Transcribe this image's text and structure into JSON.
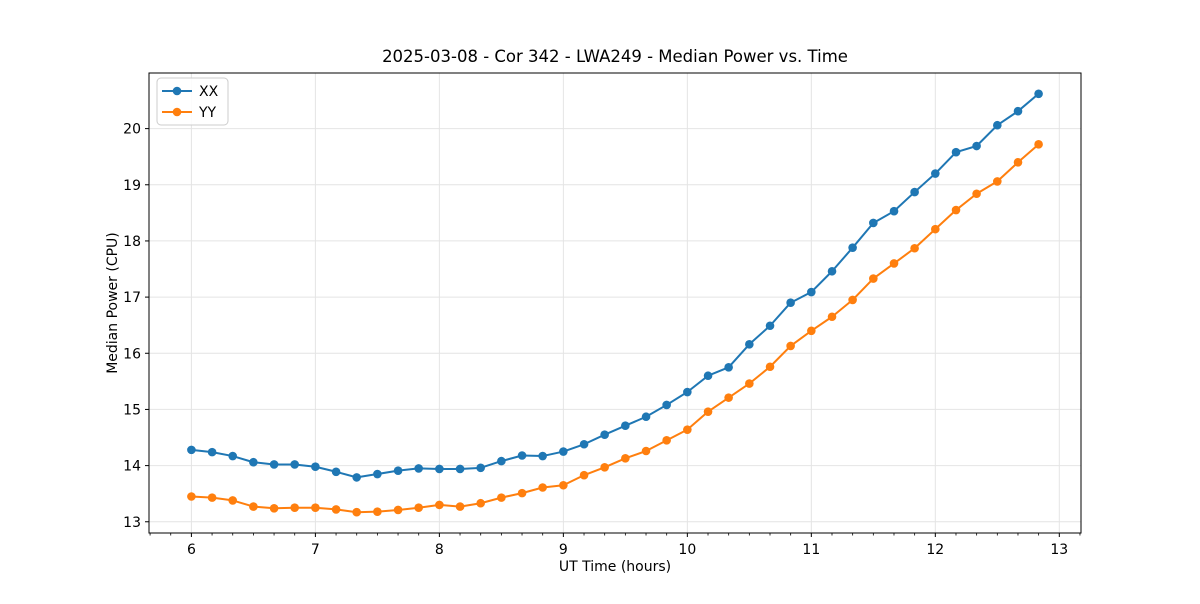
{
  "chart_data": {
    "type": "line",
    "title": "2025-03-08 - Cor 342 - LWA249 - Median Power vs. Time",
    "xlabel": "UT Time (hours)",
    "ylabel": "Median Power (CPU)",
    "xlim": [
      5.658,
      13.175
    ],
    "ylim": [
      12.8,
      20.99
    ],
    "x_major_ticks": [
      6,
      7,
      8,
      9,
      10,
      11,
      12,
      13
    ],
    "y_major_ticks": [
      13,
      14,
      15,
      16,
      17,
      18,
      19,
      20
    ],
    "x_minor_step_hours": 0.1667,
    "grid": true,
    "legend_position": "upper left",
    "x": [
      6.0,
      6.167,
      6.333,
      6.5,
      6.667,
      6.833,
      7.0,
      7.167,
      7.333,
      7.5,
      7.667,
      7.833,
      8.0,
      8.167,
      8.333,
      8.5,
      8.667,
      8.833,
      9.0,
      9.167,
      9.333,
      9.5,
      9.667,
      9.833,
      10.0,
      10.167,
      10.333,
      10.5,
      10.667,
      10.833,
      11.0,
      11.167,
      11.333,
      11.5,
      11.667,
      11.833,
      12.0,
      12.167,
      12.333,
      12.5,
      12.667,
      12.833
    ],
    "series": [
      {
        "name": "XX",
        "color": "#1f77b4",
        "values": [
          14.28,
          14.24,
          14.17,
          14.06,
          14.02,
          14.02,
          13.98,
          13.89,
          13.79,
          13.85,
          13.91,
          13.95,
          13.94,
          13.94,
          13.96,
          14.08,
          14.18,
          14.17,
          14.25,
          14.38,
          14.55,
          14.71,
          14.87,
          15.08,
          15.31,
          15.6,
          15.75,
          16.16,
          16.49,
          16.9,
          17.09,
          17.46,
          17.88,
          18.32,
          18.53,
          18.87,
          19.2,
          19.58,
          19.69,
          20.06,
          20.31,
          20.62
        ]
      },
      {
        "name": "YY",
        "color": "#ff7f0e",
        "values": [
          13.45,
          13.43,
          13.38,
          13.27,
          13.24,
          13.25,
          13.25,
          13.22,
          13.17,
          13.18,
          13.21,
          13.25,
          13.3,
          13.27,
          13.33,
          13.43,
          13.51,
          13.61,
          13.65,
          13.83,
          13.97,
          14.13,
          14.26,
          14.45,
          14.64,
          14.96,
          15.21,
          15.46,
          15.76,
          16.13,
          16.4,
          16.65,
          16.95,
          17.33,
          17.6,
          17.87,
          18.21,
          18.55,
          18.84,
          19.06,
          19.4,
          19.72
        ]
      }
    ],
    "style": {
      "grid_color": "#e4e4e4",
      "spine_color": "#000000",
      "legend_border_color": "#cccccc",
      "legend_background": "rgba(255,255,255,0.85)"
    }
  }
}
